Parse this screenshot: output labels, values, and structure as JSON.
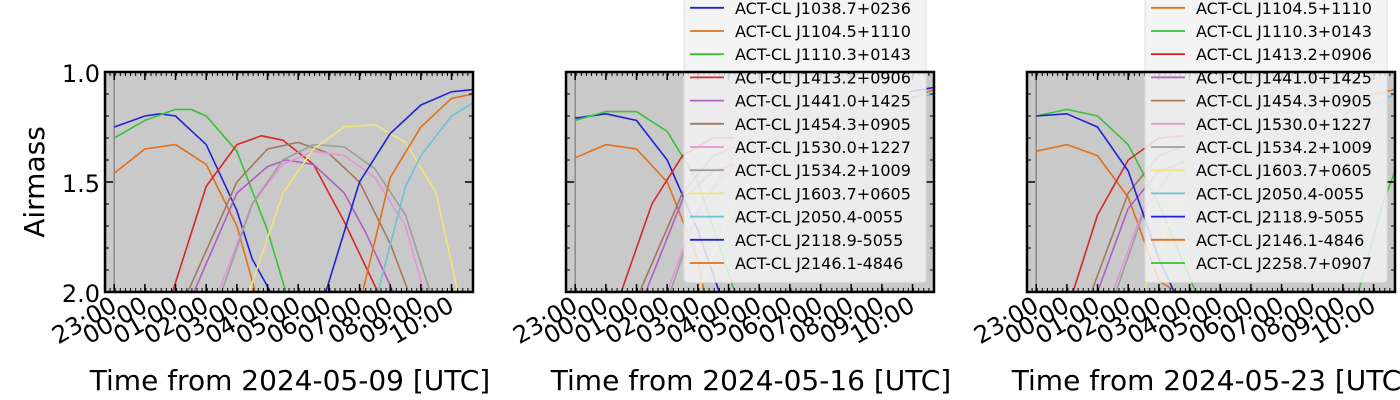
{
  "shared_y_axis": {
    "label": "Airmass",
    "ticks": [
      "1.0",
      "1.5",
      "2.0"
    ]
  },
  "x_tick_labels": [
    "23:00",
    "00:00",
    "01:00",
    "02:00",
    "03:00",
    "04:00",
    "05:00",
    "06:00",
    "07:00",
    "08:00",
    "09:00",
    "10:00"
  ],
  "colors": {
    "background": "#c9c9c9",
    "palette": [
      "#2121d6",
      "#e0701a",
      "#38c238",
      "#d62828",
      "#b05ec4",
      "#a3785c",
      "#e893d8",
      "#9e9e9e",
      "#f0e57a",
      "#6ec0d4"
    ]
  },
  "chart_data": [
    {
      "type": "line",
      "xlabel": "Time from 2024-05-09 [UTC]",
      "ylabel": "Airmass",
      "xlim": [
        -1.3,
        10.7
      ],
      "ylim": [
        2.0,
        1.0
      ],
      "y_inverted": true,
      "legend": "none",
      "series": [
        {
          "color": "#2121d6",
          "x": [
            -1.0,
            0.0,
            0.5,
            1.0,
            2.0,
            3.0,
            3.5,
            4.1
          ],
          "y": [
            1.25,
            1.2,
            1.19,
            1.2,
            1.33,
            1.63,
            1.85,
            2.0
          ]
        },
        {
          "color": "#e0701a",
          "x": [
            -1.0,
            0.0,
            1.0,
            2.0,
            3.0,
            3.6
          ],
          "y": [
            1.46,
            1.35,
            1.33,
            1.42,
            1.7,
            2.0
          ]
        },
        {
          "color": "#38c238",
          "x": [
            -1.0,
            0.0,
            1.0,
            1.5,
            2.0,
            3.0,
            4.0,
            4.6
          ],
          "y": [
            1.3,
            1.22,
            1.17,
            1.17,
            1.2,
            1.36,
            1.72,
            2.0
          ]
        },
        {
          "color": "#d62828",
          "x": [
            0.9,
            2.0,
            3.0,
            3.8,
            4.5,
            5.5,
            6.5,
            7.6
          ],
          "y": [
            2.0,
            1.52,
            1.33,
            1.29,
            1.31,
            1.42,
            1.68,
            2.0
          ]
        },
        {
          "color": "#b05ec4",
          "x": [
            1.6,
            3.0,
            4.0,
            4.6,
            5.5,
            6.5,
            7.2,
            8.1
          ],
          "y": [
            2.0,
            1.55,
            1.43,
            1.4,
            1.42,
            1.55,
            1.73,
            2.0
          ]
        },
        {
          "color": "#a3785c",
          "x": [
            1.4,
            3.0,
            4.0,
            5.0,
            6.0,
            7.0,
            8.0,
            8.6
          ],
          "y": [
            2.0,
            1.5,
            1.35,
            1.32,
            1.37,
            1.5,
            1.78,
            2.0
          ]
        },
        {
          "color": "#e893d8",
          "x": [
            2.4,
            3.5,
            4.5,
            5.5,
            6.5,
            7.5,
            8.5,
            9.1
          ],
          "y": [
            2.0,
            1.6,
            1.42,
            1.36,
            1.38,
            1.48,
            1.7,
            2.0
          ]
        },
        {
          "color": "#9e9e9e",
          "x": [
            2.5,
            3.5,
            4.5,
            5.5,
            6.5,
            7.5,
            8.5,
            9.3
          ],
          "y": [
            2.0,
            1.6,
            1.4,
            1.33,
            1.34,
            1.44,
            1.65,
            2.0
          ]
        },
        {
          "color": "#f0e57a",
          "x": [
            3.4,
            4.5,
            5.5,
            6.5,
            7.5,
            8.5,
            9.5,
            10.2
          ],
          "y": [
            2.0,
            1.55,
            1.35,
            1.25,
            1.24,
            1.32,
            1.55,
            2.0
          ]
        },
        {
          "color": "#6ec0d4",
          "x": [
            7.6,
            8.5,
            9.0,
            10.0,
            10.7
          ],
          "y": [
            2.0,
            1.52,
            1.38,
            1.2,
            1.14
          ]
        },
        {
          "color": "#2121d6",
          "x": [
            5.9,
            7.0,
            8.0,
            9.0,
            10.0,
            10.7
          ],
          "y": [
            2.0,
            1.5,
            1.28,
            1.15,
            1.09,
            1.08
          ]
        },
        {
          "color": "#e0701a",
          "x": [
            7.1,
            8.0,
            9.0,
            10.0,
            10.7
          ],
          "y": [
            2.0,
            1.48,
            1.25,
            1.12,
            1.1
          ]
        }
      ]
    },
    {
      "type": "line",
      "xlabel": "Time from 2024-05-16 [UTC]",
      "ylabel": "Airmass",
      "xlim": [
        -1.3,
        10.7
      ],
      "ylim": [
        2.0,
        1.0
      ],
      "y_inverted": true,
      "legend": "top-right",
      "series": [
        {
          "name": "ACT-CL J1038.7+0236",
          "color": "#2121d6",
          "x": [
            -1.0,
            0.0,
            1.0,
            2.0,
            3.0,
            3.7
          ],
          "y": [
            1.21,
            1.19,
            1.22,
            1.4,
            1.72,
            2.0
          ]
        },
        {
          "name": "ACT-CL J1104.5+1110",
          "color": "#e0701a",
          "x": [
            -1.0,
            0.0,
            1.0,
            2.0,
            3.0,
            3.2
          ],
          "y": [
            1.39,
            1.33,
            1.35,
            1.5,
            1.85,
            2.0
          ]
        },
        {
          "name": "ACT-CL J1110.3+0143",
          "color": "#38c238",
          "x": [
            -1.0,
            0.0,
            1.0,
            2.0,
            3.0,
            4.2
          ],
          "y": [
            1.22,
            1.18,
            1.18,
            1.27,
            1.5,
            2.0
          ]
        },
        {
          "name": "ACT-CL J1413.2+0906",
          "color": "#d62828",
          "x": [
            0.5,
            1.5,
            2.5,
            3.5,
            4.2
          ],
          "y": [
            2.0,
            1.6,
            1.38,
            1.3,
            1.3
          ]
        },
        {
          "name": "ACT-CL J1441.0+1425",
          "color": "#b05ec4",
          "x": [
            1.3,
            2.5,
            3.5,
            4.2
          ],
          "y": [
            2.0,
            1.58,
            1.45,
            1.42
          ]
        },
        {
          "name": "ACT-CL J1454.3+0905",
          "color": "#a3785c",
          "x": [
            1.1,
            2.5,
            3.5,
            4.2
          ],
          "y": [
            2.0,
            1.55,
            1.38,
            1.34
          ]
        },
        {
          "name": "ACT-CL J1530.0+1227",
          "color": "#e893d8",
          "x": [
            2.0,
            3.0,
            4.2
          ],
          "y": [
            2.0,
            1.62,
            1.42
          ]
        },
        {
          "name": "ACT-CL J1534.2+1009",
          "color": "#9e9e9e",
          "x": [
            2.1,
            3.0,
            4.2
          ],
          "y": [
            2.0,
            1.63,
            1.38
          ]
        },
        {
          "name": "ACT-CL J1603.7+0605",
          "color": "#f0e57a",
          "x": [
            3.0,
            4.2
          ],
          "y": [
            2.0,
            1.6
          ]
        },
        {
          "name": "ACT-CL J2050.4-0055",
          "color": "#6ec0d4",
          "x": [
            9.9,
            10.7
          ],
          "y": [
            1.12,
            1.1
          ]
        },
        {
          "name": "ACT-CL J2118.9-5055",
          "color": "#2121d6",
          "x": [
            9.9,
            10.7
          ],
          "y": [
            1.09,
            1.07
          ]
        },
        {
          "name": "ACT-CL J2146.1-4846",
          "color": "#e0701a",
          "x": [
            9.9,
            10.7
          ],
          "y": [
            1.12,
            1.08
          ]
        }
      ]
    },
    {
      "type": "line",
      "xlabel": "Time from 2024-05-23 [UTC]",
      "ylabel": "Airmass",
      "xlim": [
        -1.3,
        10.7
      ],
      "ylim": [
        2.0,
        1.0
      ],
      "y_inverted": true,
      "legend": "top-right",
      "series": [
        {
          "name": "ACT-CL J1104.5+1110",
          "color": "#e0701a",
          "x": [
            -1.0,
            0.0,
            1.0,
            2.0,
            3.0,
            3.6
          ],
          "y": [
            1.36,
            1.33,
            1.38,
            1.57,
            1.95,
            2.0
          ]
        },
        {
          "name": "ACT-CL J1110.3+0143",
          "color": "#38c238",
          "x": [
            -1.0,
            0.0,
            1.0,
            2.0,
            3.0,
            4.2
          ],
          "y": [
            1.2,
            1.17,
            1.2,
            1.33,
            1.6,
            2.0
          ]
        },
        {
          "name": "ACT-CL J1413.2+0906",
          "color": "#d62828",
          "x": [
            0.2,
            1.0,
            2.0,
            3.0,
            3.8
          ],
          "y": [
            2.0,
            1.65,
            1.4,
            1.3,
            1.29
          ]
        },
        {
          "name": "ACT-CL J1441.0+1425",
          "color": "#b05ec4",
          "x": [
            1.0,
            2.0,
            3.0,
            3.8
          ],
          "y": [
            2.0,
            1.62,
            1.45,
            1.41
          ]
        },
        {
          "name": "ACT-CL J1454.3+0905",
          "color": "#a3785c",
          "x": [
            0.8,
            2.0,
            3.0,
            3.8
          ],
          "y": [
            2.0,
            1.55,
            1.38,
            1.34
          ]
        },
        {
          "name": "ACT-CL J1530.0+1227",
          "color": "#e893d8",
          "x": [
            1.5,
            2.5,
            3.5,
            3.8
          ],
          "y": [
            2.0,
            1.62,
            1.45,
            1.43
          ]
        },
        {
          "name": "ACT-CL J1534.2+1009",
          "color": "#9e9e9e",
          "x": [
            1.6,
            2.5,
            3.5,
            3.8
          ],
          "y": [
            2.0,
            1.64,
            1.43,
            1.4
          ]
        },
        {
          "name": "ACT-CL J1603.7+0605",
          "color": "#f0e57a",
          "x": [
            2.5,
            3.5,
            3.8
          ],
          "y": [
            2.0,
            1.62,
            1.56
          ]
        },
        {
          "name": "ACT-CL J2050.4-0055",
          "color": "#6ec0d4",
          "x": [
            9.0,
            10.0,
            10.7
          ],
          "y": [
            1.4,
            1.15,
            1.1
          ]
        },
        {
          "name": "ACT-CL J2118.9-5055",
          "color": "#2121d6",
          "x": [
            -1.0,
            0.0,
            1.0,
            2.0,
            3.0,
            3.5
          ],
          "y": [
            1.2,
            1.19,
            1.25,
            1.45,
            1.85,
            2.0
          ]
        },
        {
          "name": "ACT-CL J2146.1-4846",
          "color": "#e0701a",
          "x": [
            9.0,
            10.0,
            10.7
          ],
          "y": [
            1.2,
            1.1,
            1.08
          ]
        },
        {
          "name": "ACT-CL J2258.7+0907",
          "color": "#38c238",
          "x": [
            9.5,
            10.3,
            10.7
          ],
          "y": [
            2.0,
            1.6,
            1.45
          ]
        }
      ]
    }
  ]
}
